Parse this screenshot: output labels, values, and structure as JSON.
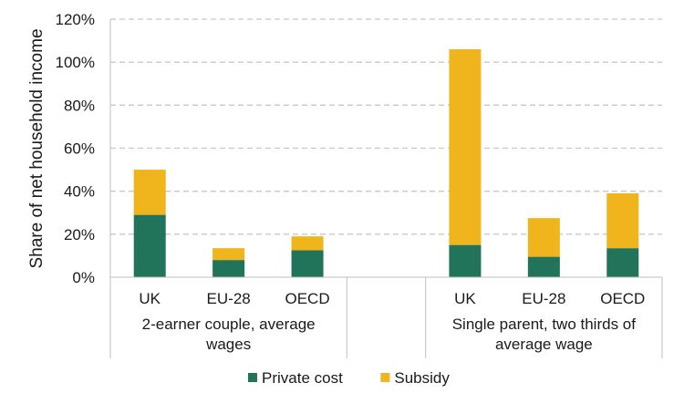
{
  "chart_data": {
    "type": "bar",
    "stacked": true,
    "ylabel": "Share of net household income",
    "ylim": [
      0,
      120
    ],
    "yticks": [
      "0%",
      "20%",
      "40%",
      "60%",
      "80%",
      "100%",
      "120%"
    ],
    "grid": true,
    "legend_position": "bottom",
    "groups": [
      {
        "label": "2-earner couple, average wages",
        "label_lines": [
          "2-earner couple, average",
          "wages"
        ],
        "categories": [
          "UK",
          "EU-28",
          "OECD"
        ]
      },
      {
        "label": "Single parent, two thirds of average wage",
        "label_lines": [
          "Single parent, two thirds of",
          "average wage"
        ],
        "categories": [
          "UK",
          "EU-28",
          "OECD"
        ]
      }
    ],
    "series": [
      {
        "name": "Private cost",
        "color": "#21735a",
        "values": [
          29,
          8,
          12.5,
          15,
          9.5,
          13.5
        ]
      },
      {
        "name": "Subsidy",
        "color": "#f0b51c",
        "values": [
          21,
          5.5,
          6.5,
          91,
          18,
          25.5
        ]
      }
    ]
  }
}
